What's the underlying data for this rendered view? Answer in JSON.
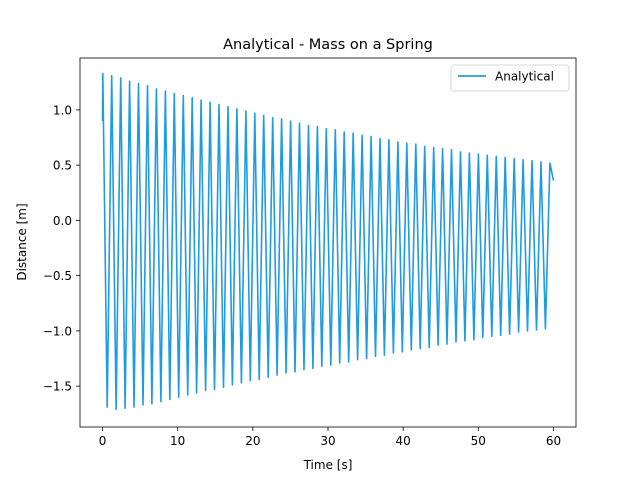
{
  "chart_data": {
    "type": "line",
    "title": "Analytical - Mass on a Spring",
    "xlabel": "Time [s]",
    "ylabel": "Distance [m]",
    "xlim": [
      -3,
      63
    ],
    "ylim": [
      -1.87,
      1.47
    ],
    "xticks": [
      0,
      10,
      20,
      30,
      40,
      50,
      60
    ],
    "xtick_labels": [
      "0",
      "10",
      "20",
      "30",
      "40",
      "50",
      "60"
    ],
    "yticks": [
      -1.5,
      -1.0,
      -0.5,
      0.0,
      0.5,
      1.0
    ],
    "ytick_labels": [
      "−1.5",
      "−1.0",
      "−0.5",
      "0.0",
      "0.5",
      "1.0"
    ],
    "grid": false,
    "legend": {
      "position": "upper right",
      "entries": [
        "Analytical"
      ]
    },
    "series": [
      {
        "name": "Analytical",
        "color": "#1f9be0",
        "x_range": [
          0,
          60
        ],
        "start_value": 0.9,
        "end_value": 0.36,
        "max_peaks": [
          1.33,
          1.31,
          1.29,
          1.26,
          1.24,
          1.22,
          1.19,
          1.17,
          1.15,
          1.13,
          1.11,
          1.09,
          1.07,
          1.05,
          1.03,
          1.01,
          0.99,
          0.97,
          0.95,
          0.93,
          0.92,
          0.9,
          0.88,
          0.86,
          0.85,
          0.83,
          0.82,
          0.8,
          0.79,
          0.77,
          0.76,
          0.74,
          0.73,
          0.71,
          0.7,
          0.69,
          0.67,
          0.66,
          0.65,
          0.64,
          0.62,
          0.61,
          0.6,
          0.59
        ],
        "min_peaks": [
          -1.69,
          -1.71,
          -1.7,
          -1.69,
          -1.67,
          -1.66,
          -1.64,
          -1.62,
          -1.6,
          -1.58,
          -1.56,
          -1.54,
          -1.53,
          -1.51,
          -1.49,
          -1.47,
          -1.45,
          -1.44,
          -1.42,
          -1.4,
          -1.38,
          -1.37,
          -1.35,
          -1.34,
          -1.32,
          -1.31,
          -1.29,
          -1.28,
          -1.26,
          -1.25,
          -1.23,
          -1.22,
          -1.2,
          -1.19,
          -1.17,
          -1.16,
          -1.15,
          -1.13,
          -1.12,
          -1.1,
          -1.09,
          -1.08,
          -1.06,
          -1.05,
          -1.04,
          -1.03,
          -1.01,
          -1.0,
          -0.99,
          -0.98,
          -0.97
        ]
      }
    ]
  }
}
